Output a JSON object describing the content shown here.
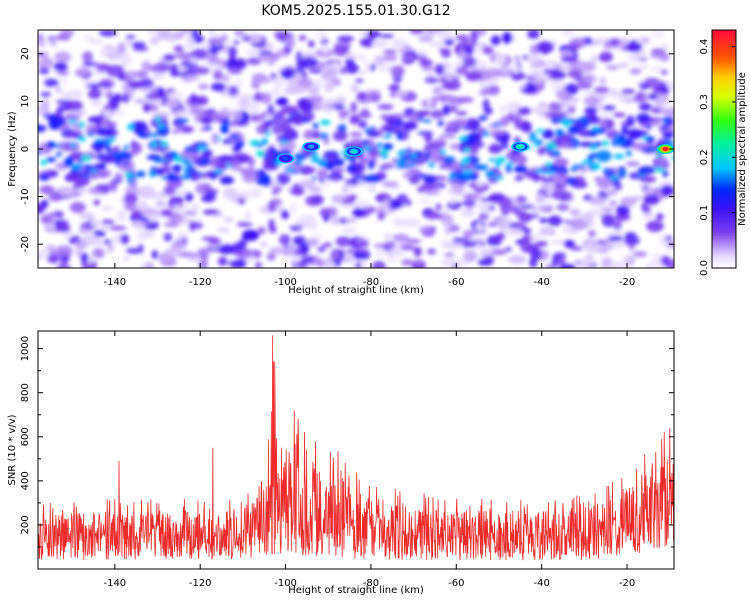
{
  "chart_data": [
    {
      "type": "heatmap",
      "title": "KOM5.2025.155.01.30.G12",
      "xlabel": "Height of straight line (km)",
      "ylabel": "Frequency (Hz)",
      "xlim": [
        -158,
        -9
      ],
      "ylim": [
        -25,
        25
      ],
      "x_ticks": [
        -140,
        -120,
        -100,
        -80,
        -60,
        -40,
        -20
      ],
      "y_ticks": [
        -20,
        -10,
        0,
        10,
        20
      ],
      "colorbar": {
        "label": "Normalized spectral amplitude",
        "range": [
          0.0,
          0.43
        ],
        "ticks": [
          0.0,
          0.1,
          0.2,
          0.3,
          0.4
        ],
        "colormap": "white-purple-blue-cyan-green-yellow-red"
      },
      "features": {
        "band_center_hz": 0,
        "band_halfwidth_hz": 7,
        "peaks": [
          {
            "x": -11,
            "y": 0,
            "value": 0.42
          },
          {
            "x": -45,
            "y": 0.5,
            "value": 0.22
          },
          {
            "x": -84,
            "y": -0.5,
            "value": 0.2
          },
          {
            "x": -94,
            "y": 0.5,
            "value": 0.17
          },
          {
            "x": -100,
            "y": -2,
            "value": 0.15
          }
        ]
      },
      "colors": {
        "low": "#e8dcff",
        "mid": "#6a1fe8",
        "high": "#ff1010"
      }
    },
    {
      "type": "line",
      "title": "",
      "xlabel": "Height of straight line (km)",
      "ylabel": "SNR (10 * v/v)",
      "xlim": [
        -158,
        -9
      ],
      "ylim": [
        0,
        1080
      ],
      "x_ticks": [
        -140,
        -120,
        -100,
        -80,
        -60,
        -40,
        -20
      ],
      "y_ticks": [
        200,
        400,
        600,
        800,
        1000
      ],
      "series": [
        {
          "color": "#ee2a2a",
          "envelope": {
            "x": [
              -158,
              -140,
              -120,
              -110,
              -105,
              -103,
              -101,
              -98,
              -95,
              -90,
              -85,
              -80,
              -70,
              -60,
              -50,
              -40,
              -30,
              -25,
              -20,
              -15,
              -12,
              -9
            ],
            "upper": [
              300,
              320,
              330,
              350,
              420,
              1060,
              560,
              720,
              610,
              600,
              470,
              400,
              360,
              330,
              320,
              330,
              340,
              380,
              460,
              560,
              640,
              600
            ],
            "lower": [
              40,
              40,
              40,
              45,
              60,
              60,
              70,
              70,
              60,
              50,
              45,
              40,
              40,
              40,
              40,
              40,
              40,
              50,
              60,
              80,
              90,
              90
            ]
          }
        }
      ],
      "notable_points": [
        {
          "x": -103,
          "y": 1060
        },
        {
          "x": -98,
          "y": 720
        },
        {
          "x": -139,
          "y": 490
        },
        {
          "x": -117,
          "y": 550
        },
        {
          "x": -10,
          "y": 640
        }
      ]
    }
  ]
}
